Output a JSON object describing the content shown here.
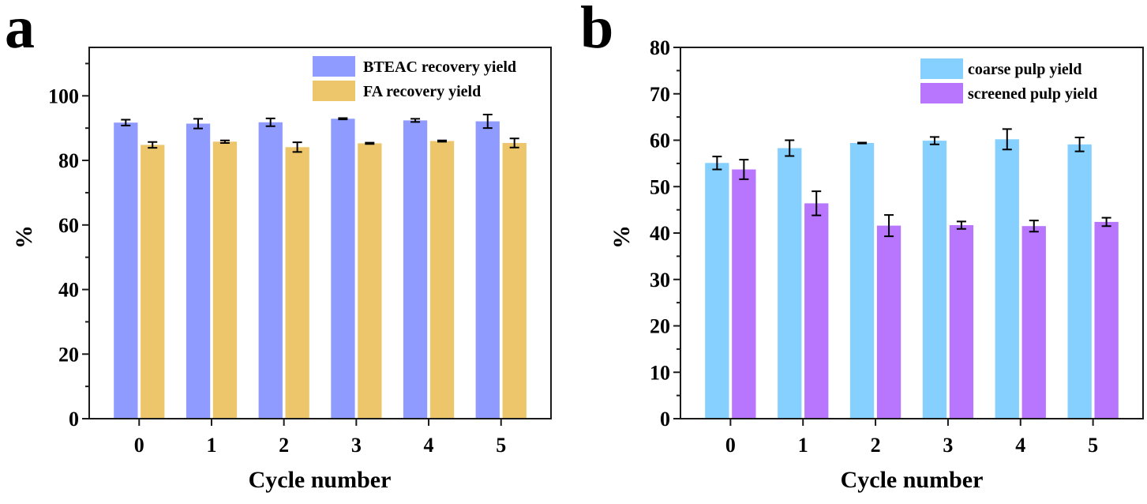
{
  "chart_data": [
    {
      "panel": "a",
      "type": "bar",
      "title": "",
      "xlabel": "Cycle number",
      "ylabel": "%",
      "categories": [
        "0",
        "1",
        "2",
        "3",
        "4",
        "5"
      ],
      "ylim": [
        0,
        115
      ],
      "yticks": [
        0,
        20,
        40,
        60,
        80,
        100
      ],
      "yminor_step": 10,
      "grid": false,
      "legend_position": "top-right",
      "series": [
        {
          "name": "BTEAC recovery yield",
          "color": "#8f9bff",
          "values": [
            91.7,
            91.4,
            91.8,
            92.9,
            92.4,
            92.1
          ],
          "errors": [
            0.9,
            1.5,
            1.2,
            0.2,
            0.5,
            2.1
          ]
        },
        {
          "name": "FA recovery yield",
          "color": "#edc66b",
          "values": [
            84.8,
            85.8,
            84.1,
            85.3,
            86.0,
            85.4
          ],
          "errors": [
            0.9,
            0.4,
            1.5,
            0.2,
            0.2,
            1.4
          ]
        }
      ]
    },
    {
      "panel": "b",
      "type": "bar",
      "title": "",
      "xlabel": "Cycle number",
      "ylabel": "%",
      "categories": [
        "0",
        "1",
        "2",
        "3",
        "4",
        "5"
      ],
      "ylim": [
        0,
        80
      ],
      "yticks": [
        0,
        10,
        20,
        30,
        40,
        50,
        60,
        70,
        80
      ],
      "yminor_step": 5,
      "grid": false,
      "legend_position": "top-right",
      "series": [
        {
          "name": "coarse pulp yield",
          "color": "#85d0ff",
          "values": [
            55.1,
            58.3,
            59.4,
            59.9,
            60.2,
            59.1
          ],
          "errors": [
            1.4,
            1.7,
            0.1,
            0.8,
            2.2,
            1.5
          ]
        },
        {
          "name": "screened pulp yield",
          "color": "#b876ff",
          "values": [
            53.7,
            46.4,
            41.6,
            41.7,
            41.5,
            42.4
          ],
          "errors": [
            2.1,
            2.6,
            2.3,
            0.8,
            1.2,
            0.9
          ]
        }
      ]
    }
  ],
  "panels": {
    "a": {
      "letter": "a"
    },
    "b": {
      "letter": "b"
    }
  }
}
